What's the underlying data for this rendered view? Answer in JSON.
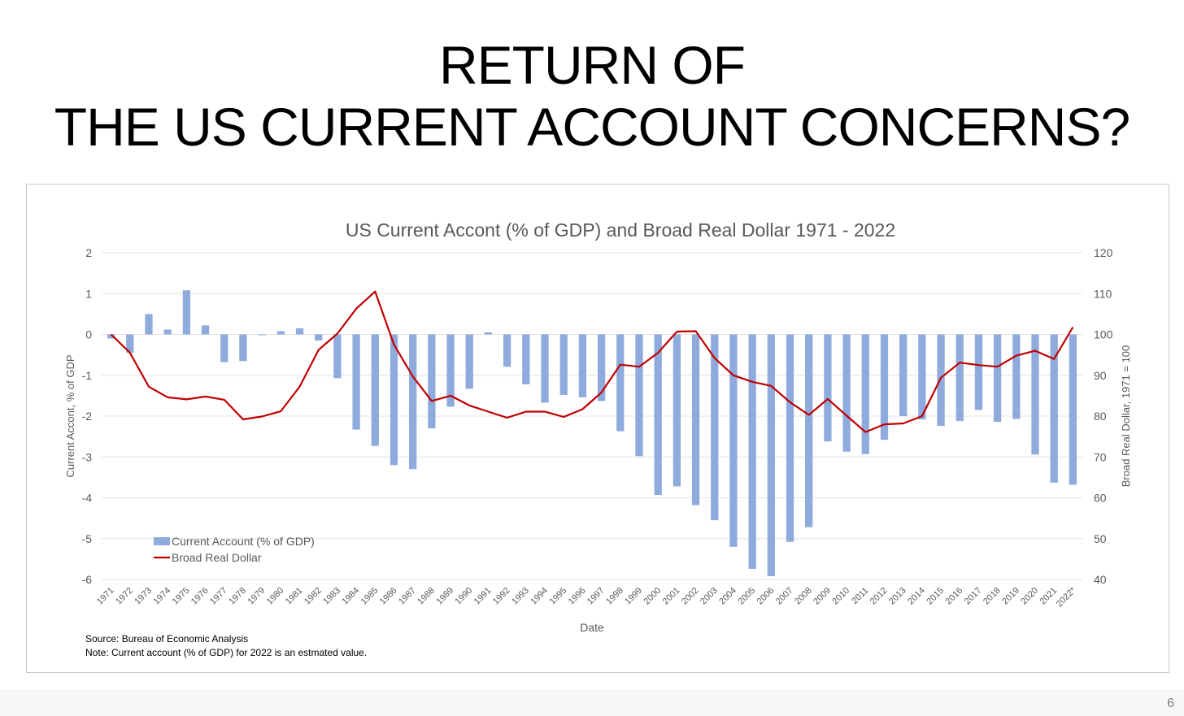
{
  "slide": {
    "title_line1": "RETURN OF",
    "title_line2": "THE US CURRENT ACCOUNT CONCERNS?",
    "page_number": "6"
  },
  "chart_data": {
    "type": "bar",
    "title": "US Current Accont (% of GDP) and Broad Real Dollar 1971 - 2022",
    "xlabel": "Date",
    "ylabel": "Current Accont, % of GDP",
    "y2label": "Broad Real Dollar, 1971 = 100",
    "ylim": [
      -6,
      2
    ],
    "y2lim": [
      40,
      120
    ],
    "yticks": [
      "2",
      "1",
      "0",
      "-1",
      "-2",
      "-3",
      "-4",
      "-5",
      "-6"
    ],
    "y2ticks": [
      "120",
      "110",
      "100",
      "90",
      "80",
      "70",
      "60",
      "50",
      "40"
    ],
    "grid": true,
    "legend_position": "bottom-left",
    "categories": [
      "1971",
      "1972",
      "1973",
      "1974",
      "1975",
      "1976",
      "1977",
      "1978",
      "1979",
      "1980",
      "1981",
      "1982",
      "1983",
      "1984",
      "1985",
      "1986",
      "1987",
      "1988",
      "1989",
      "1990",
      "1991",
      "1992",
      "1993",
      "1994",
      "1995",
      "1996",
      "1997",
      "1998",
      "1999",
      "2000",
      "2001",
      "2002",
      "2003",
      "2004",
      "2005",
      "2006",
      "2007",
      "2008",
      "2009",
      "2010",
      "2011",
      "2012",
      "2013",
      "2014",
      "2015",
      "2016",
      "2017",
      "2018",
      "2019",
      "2020",
      "2021",
      "2022*"
    ],
    "series": [
      {
        "name": "Current Account (% of GDP)",
        "kind": "bar",
        "axis": "left",
        "color": "#8faadc",
        "values": [
          -0.1,
          -0.45,
          0.5,
          0.12,
          1.08,
          0.22,
          -0.68,
          -0.65,
          -0.02,
          0.08,
          0.15,
          -0.15,
          -1.07,
          -2.33,
          -2.73,
          -3.2,
          -3.3,
          -2.3,
          -1.77,
          -1.33,
          0.05,
          -0.79,
          -1.22,
          -1.67,
          -1.48,
          -1.54,
          -1.63,
          -2.37,
          -2.98,
          -3.93,
          -3.72,
          -4.18,
          -4.55,
          -5.2,
          -5.74,
          -5.92,
          -5.08,
          -4.72,
          -2.62,
          -2.87,
          -2.93,
          -2.58,
          -2.0,
          -2.08,
          -2.24,
          -2.12,
          -1.85,
          -2.14,
          -2.07,
          -2.94,
          -3.63,
          -3.68
        ]
      },
      {
        "name": "Broad Real Dollar",
        "kind": "line",
        "axis": "right",
        "color": "#c00000",
        "values": [
          100,
          95.5,
          87.2,
          84.6,
          84.1,
          84.8,
          84,
          79.2,
          79.9,
          81.2,
          87.2,
          96.2,
          100.2,
          106.3,
          110.5,
          97.5,
          89.7,
          83.7,
          85,
          82.6,
          81.1,
          79.6,
          81.1,
          81.1,
          79.8,
          81.7,
          85.8,
          92.6,
          92.1,
          95.5,
          100.7,
          100.8,
          94.2,
          90,
          88.4,
          87.4,
          83.4,
          80.3,
          84.2,
          80.1,
          76.1,
          78,
          78.2,
          80,
          89.4,
          93.1,
          92.5,
          92.1,
          94.8,
          96,
          94,
          101.8
        ]
      }
    ]
  },
  "notes": {
    "source": "Source: Bureau of Economic Analysis",
    "note": "Note: Current account (% of GDP) for 2022 is an estmated value."
  }
}
